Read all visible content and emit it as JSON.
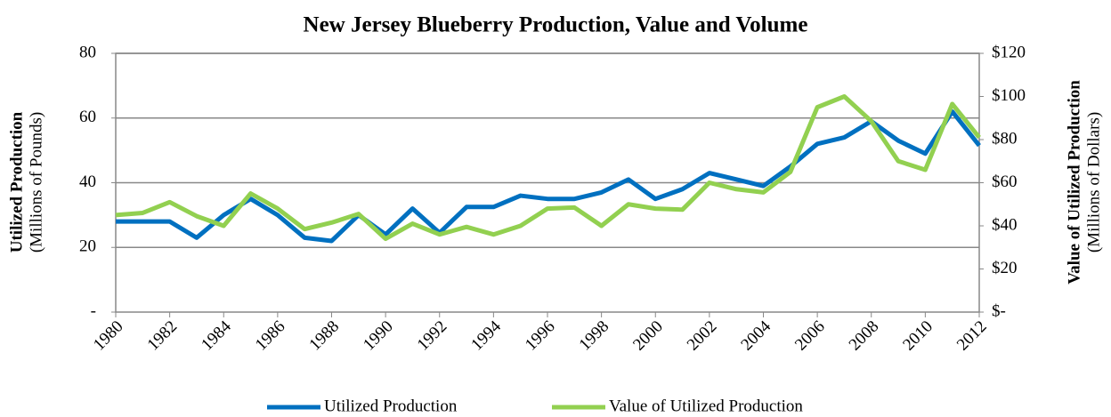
{
  "chart_data": {
    "type": "line",
    "title": "New Jersey Blueberry Production, Value and Volume",
    "ylabel": "Utilized Production",
    "ylabel_sub": "(Millions of Pounds)",
    "y2label": "Value of Utilized Production",
    "y2label_sub": "(Millions of Dollars)",
    "x": [
      1980,
      1981,
      1982,
      1983,
      1984,
      1985,
      1986,
      1987,
      1988,
      1989,
      1990,
      1991,
      1992,
      1993,
      1994,
      1995,
      1996,
      1997,
      1998,
      1999,
      2000,
      2001,
      2002,
      2003,
      2004,
      2005,
      2006,
      2007,
      2008,
      2009,
      2010,
      2011,
      2012
    ],
    "xlim": [
      1980,
      2012
    ],
    "xticks": [
      1980,
      1982,
      1984,
      1986,
      1988,
      1990,
      1992,
      1994,
      1996,
      1998,
      2000,
      2002,
      2004,
      2006,
      2008,
      2010,
      2012
    ],
    "ylim": [
      0,
      80
    ],
    "yticks": [
      {
        "value": 0,
        "label": "-"
      },
      20,
      40,
      60,
      80
    ],
    "y2lim": [
      0,
      120
    ],
    "y2ticks": [
      {
        "value": 0,
        "label": "$-"
      },
      {
        "value": 20,
        "label": "$20"
      },
      {
        "value": 40,
        "label": "$40"
      },
      {
        "value": 60,
        "label": "$60"
      },
      {
        "value": 80,
        "label": "$80"
      },
      {
        "value": 100,
        "label": "$100"
      },
      {
        "value": 120,
        "label": "$120"
      }
    ],
    "grid": true,
    "legend": "bottom",
    "series": [
      {
        "name": "Utilized Production",
        "color": "#0070c0",
        "values": [
          28,
          28,
          28,
          23,
          30,
          35,
          30,
          23,
          22,
          30,
          24,
          32,
          24.5,
          32.5,
          32.5,
          36,
          35,
          35,
          37,
          41,
          35,
          38,
          43,
          41,
          39,
          45,
          52,
          54,
          59,
          53,
          49,
          62,
          51.5
        ]
      },
      {
        "name": "Value of Utilized Production",
        "color": "#92d050",
        "axis": "y2",
        "values": [
          45,
          46,
          51,
          44.5,
          40,
          55,
          48,
          38.5,
          41.5,
          45.5,
          34,
          41,
          36,
          39.5,
          36,
          40,
          48,
          48.5,
          40,
          50,
          48,
          47.5,
          60,
          57,
          55.5,
          65,
          95,
          100,
          88.5,
          70,
          66,
          96.5,
          81
        ]
      }
    ]
  }
}
